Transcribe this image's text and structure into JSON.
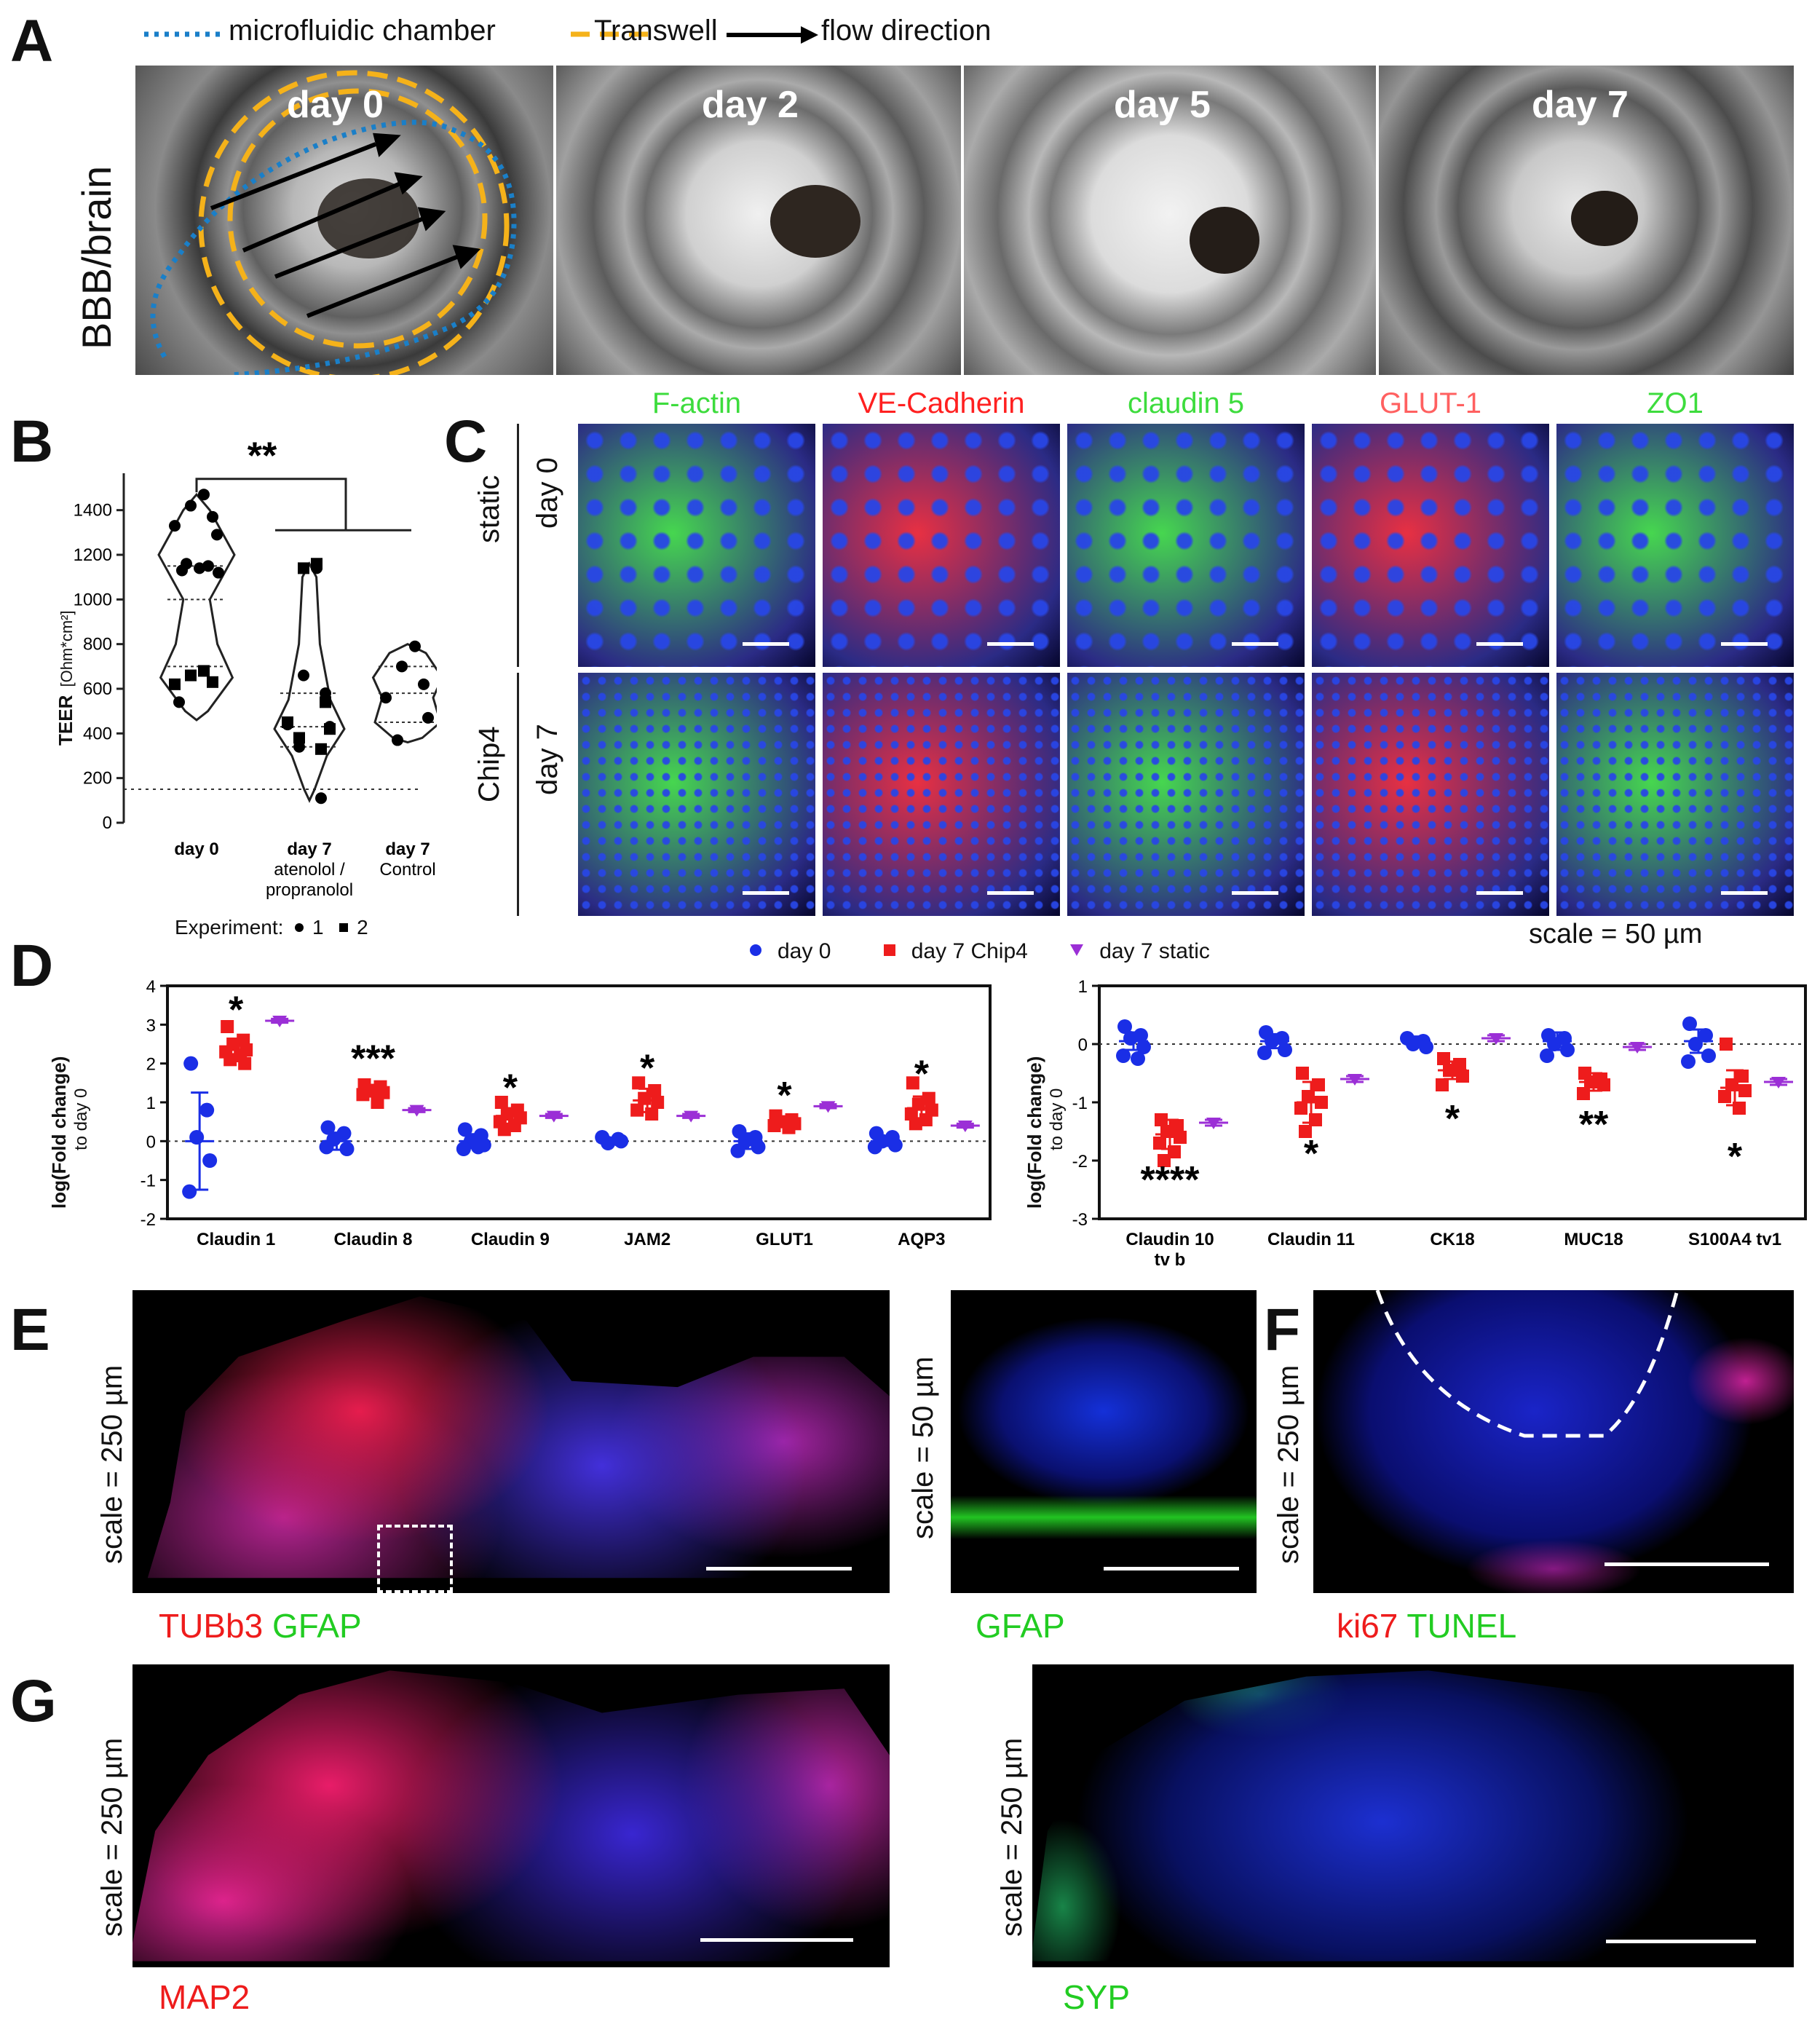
{
  "panel_a": {
    "label": "A",
    "legend": {
      "chamber": "microfluidic chamber",
      "transwell": "Transwell",
      "flow": "flow direction"
    },
    "side_label": "BBB/brain",
    "days": [
      "day 0",
      "day 2",
      "day 5",
      "day 7"
    ]
  },
  "panel_b": {
    "label": "B",
    "ylabel_bold": "TEER",
    "ylabel_unit": "[Ohm*cm²]",
    "significance": "**",
    "experiment_label": "Experiment:",
    "experiment_1": "1",
    "experiment_2": "2"
  },
  "panel_c": {
    "label": "C",
    "stains": [
      {
        "name": "F-actin",
        "color": "#3ddc3d"
      },
      {
        "name": "VE-Cadherin",
        "color": "#ff2020"
      },
      {
        "name": "claudin 5",
        "color": "#3ddc3d"
      },
      {
        "name": "GLUT-1",
        "color": "#ff6060"
      },
      {
        "name": "ZO1",
        "color": "#3ddc3d"
      }
    ],
    "row_condition": [
      "static",
      "Chip4"
    ],
    "row_day": [
      "day 0",
      "day 7"
    ],
    "scale": "scale = 50 µm"
  },
  "panel_d": {
    "label": "D",
    "legend": [
      "day 0",
      "day 7 Chip4",
      "day 7 static"
    ],
    "ylabel": "log(Fold change)",
    "ylabel2": "to day 0"
  },
  "chart_data": [
    {
      "type": "scatter",
      "panel": "B",
      "ylabel": "TEER [Ohm*cm²]",
      "ylim": [
        0,
        1500
      ],
      "yticks": [
        0,
        200,
        400,
        600,
        800,
        1000,
        1200,
        1400
      ],
      "threshold_line": 150,
      "categories": [
        "day 0",
        "day 7 atenolol / propranolol",
        "day 7 Control"
      ],
      "category_lines": [
        [
          "day 0"
        ],
        [
          "day 7",
          "atenolol /",
          "propranolol"
        ],
        [
          "day 7",
          "Control"
        ]
      ],
      "significance": "**",
      "series": [
        {
          "name": "1",
          "marker": "circle",
          "points": [
            [
              0,
              1470
            ],
            [
              0,
              1420
            ],
            [
              0,
              1370
            ],
            [
              0,
              1330
            ],
            [
              0,
              1290
            ],
            [
              0,
              1160
            ],
            [
              0,
              1150
            ],
            [
              0,
              1140
            ],
            [
              0,
              1130
            ],
            [
              0,
              1120
            ],
            [
              0,
              540
            ],
            [
              1,
              1140
            ],
            [
              1,
              660
            ],
            [
              1,
              580
            ],
            [
              1,
              440
            ],
            [
              1,
              430
            ],
            [
              1,
              340
            ],
            [
              1,
              110
            ],
            [
              2,
              790
            ],
            [
              2,
              700
            ],
            [
              2,
              620
            ],
            [
              2,
              560
            ],
            [
              2,
              470
            ],
            [
              2,
              370
            ]
          ]
        },
        {
          "name": "2",
          "marker": "square",
          "points": [
            [
              0,
              680
            ],
            [
              0,
              660
            ],
            [
              0,
              630
            ],
            [
              0,
              620
            ],
            [
              1,
              1160
            ],
            [
              1,
              1140
            ],
            [
              1,
              540
            ],
            [
              1,
              450
            ],
            [
              1,
              420
            ],
            [
              1,
              380
            ],
            [
              1,
              330
            ]
          ]
        }
      ]
    },
    {
      "type": "scatter",
      "panel": "D-left",
      "ylabel": "log(Fold change) to day 0",
      "ylim": [
        -2,
        4
      ],
      "yticks": [
        -2,
        -1,
        0,
        1,
        2,
        3,
        4
      ],
      "categories": [
        "Claudin 1",
        "Claudin 8",
        "Claudin 9",
        "JAM2",
        "GLUT1",
        "AQP3"
      ],
      "significance": [
        "*",
        "***",
        "*",
        "*",
        "*",
        "*"
      ],
      "series": [
        {
          "name": "day 0",
          "color": "#1a2ee6",
          "mean": [
            0.0,
            0.0,
            0.0,
            0.0,
            0.0,
            0.0
          ],
          "error": [
            1.25,
            0.22,
            0.18,
            0.05,
            0.2,
            0.12
          ],
          "points": [
            [
              2.0,
              0.8,
              0.1,
              -0.5,
              -1.3
            ],
            [
              0.35,
              0.2,
              0.05,
              -0.2,
              -0.15
            ],
            [
              0.3,
              0.15,
              0.0,
              -0.1,
              -0.2,
              -0.15
            ],
            [
              0.1,
              0.05,
              -0.05,
              0.0
            ],
            [
              0.25,
              0.1,
              0.0,
              -0.15,
              -0.25,
              0.05
            ],
            [
              0.2,
              0.1,
              0.0,
              -0.1,
              -0.15
            ]
          ]
        },
        {
          "name": "day 7 Chip4",
          "color": "#ee1c1c",
          "mean": [
            2.35,
            1.3,
            0.65,
            1.05,
            0.5,
            0.85
          ],
          "error": [
            0.25,
            0.15,
            0.2,
            0.3,
            0.1,
            0.3
          ],
          "points": [
            [
              2.95,
              2.6,
              2.5,
              2.35,
              2.3,
              2.2,
              2.1,
              2.0
            ],
            [
              1.45,
              1.4,
              1.3,
              1.25,
              1.2,
              1.0
            ],
            [
              1.0,
              0.8,
              0.7,
              0.6,
              0.5,
              0.4,
              0.3
            ],
            [
              1.5,
              1.3,
              1.1,
              1.0,
              0.8,
              0.7
            ],
            [
              0.65,
              0.55,
              0.5,
              0.45,
              0.4,
              0.35
            ],
            [
              1.5,
              1.1,
              0.95,
              0.8,
              0.7,
              0.55,
              0.45
            ]
          ]
        },
        {
          "name": "day 7 static",
          "color": "#9b2fd6",
          "mean": [
            3.1,
            0.8,
            0.65,
            0.65,
            0.9,
            0.4
          ],
          "error": [
            0.05,
            0.05,
            0.05,
            0.05,
            0.05,
            0.05
          ],
          "points": [
            [
              3.1
            ],
            [
              0.8
            ],
            [
              0.65
            ],
            [
              0.65
            ],
            [
              0.9
            ],
            [
              0.4
            ]
          ]
        }
      ]
    },
    {
      "type": "scatter",
      "panel": "D-right",
      "ylabel": "log(Fold change) to day 0",
      "ylim": [
        -3,
        1
      ],
      "yticks": [
        -3,
        -2,
        -1,
        0,
        1
      ],
      "categories": [
        "Claudin 10 tv b",
        "Claudin 11",
        "CK18",
        "MUC18",
        "S100A4 tv1"
      ],
      "category_lines": [
        [
          "Claudin 10",
          "tv b"
        ],
        [
          "Claudin 11"
        ],
        [
          "CK18"
        ],
        [
          "MUC18"
        ],
        [
          "S100A4 tv1"
        ]
      ],
      "significance": [
        "****",
        "*",
        "*",
        "**",
        "*"
      ],
      "series": [
        {
          "name": "day 0",
          "color": "#1a2ee6",
          "mean": [
            0.05,
            0.05,
            0.05,
            0.05,
            0.05
          ],
          "error": [
            0.15,
            0.12,
            0.08,
            0.15,
            0.2
          ],
          "points": [
            [
              0.3,
              0.15,
              0.1,
              -0.05,
              -0.2,
              -0.25
            ],
            [
              0.2,
              0.1,
              0.05,
              -0.1,
              -0.15
            ],
            [
              0.1,
              0.05,
              0.0,
              -0.05
            ],
            [
              0.15,
              0.1,
              0.0,
              -0.1,
              -0.2
            ],
            [
              0.35,
              0.15,
              0.0,
              -0.2,
              -0.3
            ]
          ]
        },
        {
          "name": "day 7 Chip4",
          "color": "#ee1c1c",
          "mean": [
            -1.55,
            -1.0,
            -0.45,
            -0.65,
            -0.75
          ],
          "error": [
            0.25,
            0.35,
            0.15,
            0.15,
            0.3
          ],
          "points": [
            [
              -1.3,
              -1.4,
              -1.5,
              -1.6,
              -1.7,
              -1.85,
              -2.0
            ],
            [
              -0.5,
              -0.7,
              -0.9,
              -1.0,
              -1.1,
              -1.3,
              -1.5
            ],
            [
              -0.25,
              -0.35,
              -0.45,
              -0.55,
              -0.7
            ],
            [
              -0.5,
              -0.6,
              -0.65,
              -0.7,
              -0.85
            ],
            [
              0.0,
              -0.55,
              -0.7,
              -0.8,
              -0.9,
              -1.1
            ]
          ]
        },
        {
          "name": "day 7 static",
          "color": "#9b2fd6",
          "mean": [
            -1.35,
            -0.6,
            0.1,
            -0.05,
            -0.65
          ],
          "error": [
            0.05,
            0.05,
            0.05,
            0.05,
            0.05
          ],
          "points": [
            [
              -1.35
            ],
            [
              -0.6
            ],
            [
              0.1
            ],
            [
              -0.05
            ],
            [
              -0.65
            ]
          ]
        }
      ]
    }
  ],
  "panel_e": {
    "label": "E",
    "scale_main": "scale = 250 µm",
    "scale_inset": "scale = 50 µm",
    "stain_red": "TUBb3",
    "stain_green": "GFAP",
    "inset_stain": "GFAP"
  },
  "panel_f": {
    "label": "F",
    "scale": "scale = 250 µm",
    "stain_red": "ki67",
    "stain_green": "TUNEL"
  },
  "panel_g": {
    "label": "G",
    "scale_left": "scale = 250 µm",
    "scale_right": "scale = 250 µm",
    "stain_left": "MAP2",
    "stain_right": "SYP"
  }
}
